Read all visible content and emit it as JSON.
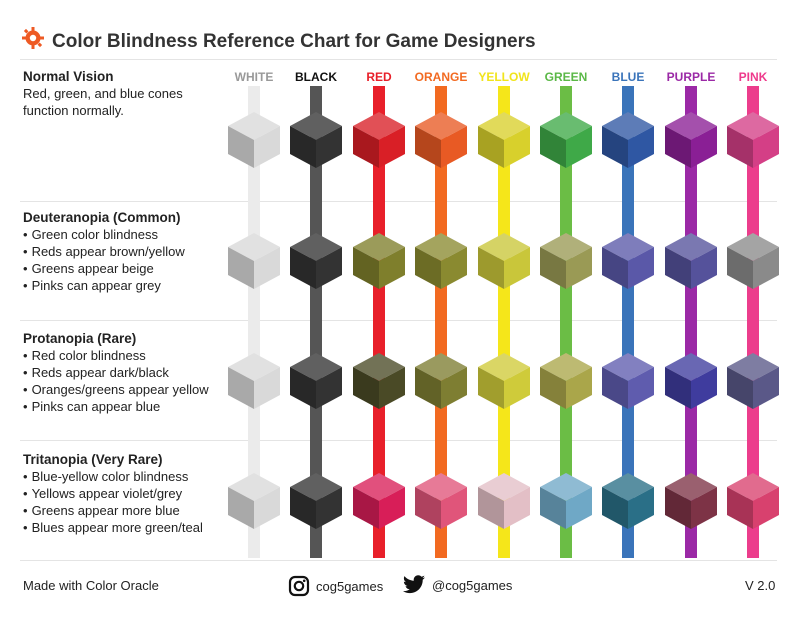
{
  "title": "Color Blindness Reference Chart for Game Designers",
  "columns": [
    {
      "label": "WHITE",
      "color": "#999999"
    },
    {
      "label": "BLACK",
      "color": "#111111"
    },
    {
      "label": "RED",
      "color": "#e8202a"
    },
    {
      "label": "ORANGE",
      "color": "#f26a21"
    },
    {
      "label": "YELLOW",
      "color": "#f1e41c"
    },
    {
      "label": "GREEN",
      "color": "#5bb847"
    },
    {
      "label": "BLUE",
      "color": "#3a74ba"
    },
    {
      "label": "PURPLE",
      "color": "#9b29a6"
    },
    {
      "label": "PINK",
      "color": "#ee3a8c"
    }
  ],
  "stripe_colors": [
    "#ebebeb",
    "#555555",
    "#e8202a",
    "#f26a21",
    "#f5e61a",
    "#6bbd45",
    "#3a74ba",
    "#9b29a6",
    "#ec3d8c"
  ],
  "sections": [
    {
      "title": "Normal Vision",
      "description": "Red, green, and blue cones function normally.",
      "bullets": [],
      "cube_colors": [
        "#d9d9d9",
        "#333333",
        "#d91f26",
        "#e85a24",
        "#d8d02c",
        "#3fa948",
        "#2f57a3",
        "#8a1f95",
        "#d43f86"
      ]
    },
    {
      "title": "Deuteranopia (Common)",
      "description": "",
      "bullets": [
        "Green color blindness",
        "Reds appear brown/yellow",
        "Greens appear beige",
        "Pinks can appear grey"
      ],
      "cube_colors": [
        "#d9d9d9",
        "#333333",
        "#7f7f2c",
        "#8a8a30",
        "#c9c63a",
        "#9a9a55",
        "#5a58a8",
        "#55529b",
        "#8a8a8a"
      ]
    },
    {
      "title": "Protanopia (Rare)",
      "description": "",
      "bullets": [
        "Red color blindness",
        "Reds appear dark/black",
        "Oranges/greens appear yellow",
        "Pinks can appear blue"
      ],
      "cube_colors": [
        "#d9d9d9",
        "#333333",
        "#4a4a26",
        "#7e7e32",
        "#cfcb3a",
        "#aaa64a",
        "#5f5cae",
        "#3f3c9e",
        "#5a5888"
      ]
    },
    {
      "title": "Tritanopia (Very Rare)",
      "description": "",
      "bullets": [
        "Blue-yellow color blindness",
        "Yellows appear violet/grey",
        "Greens appear more blue",
        "Blues appear more green/teal"
      ],
      "cube_colors": [
        "#d9d9d9",
        "#333333",
        "#d81e58",
        "#e0557a",
        "#e3bfc6",
        "#6fa8c6",
        "#2a6f87",
        "#7d3346",
        "#d8416e"
      ]
    }
  ],
  "footer": {
    "left": "Made with Color Oracle",
    "instagram": "cog5games",
    "twitter": "@cog5games",
    "version": "V 2.0"
  },
  "icons": {
    "logo": "cog-icon",
    "instagram": "instagram-icon",
    "twitter": "twitter-icon"
  }
}
